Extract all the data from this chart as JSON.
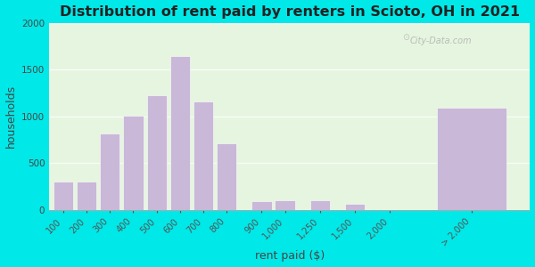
{
  "title": "Distribution of rent paid by renters in Scioto, OH in 2021",
  "xlabel": "rent paid ($)",
  "ylabel": "households",
  "bar_labels": [
    "100",
    "200",
    "300",
    "400",
    "500",
    "600",
    "700",
    "800",
    "900",
    "1,000",
    "1,250",
    "1,500",
    "2,000",
    "> 2,000"
  ],
  "bar_values": [
    300,
    305,
    820,
    1005,
    1225,
    1650,
    1165,
    710,
    95,
    100,
    105,
    70,
    0,
    1090
  ],
  "bar_color": "#c9b8d8",
  "background_outer": "#00e8e8",
  "background_inner": "#e6f5df",
  "ylim": [
    0,
    2000
  ],
  "yticks": [
    0,
    500,
    1000,
    1500,
    2000
  ],
  "title_fontsize": 11.5,
  "axis_label_fontsize": 9,
  "watermark": "City-Data.com"
}
